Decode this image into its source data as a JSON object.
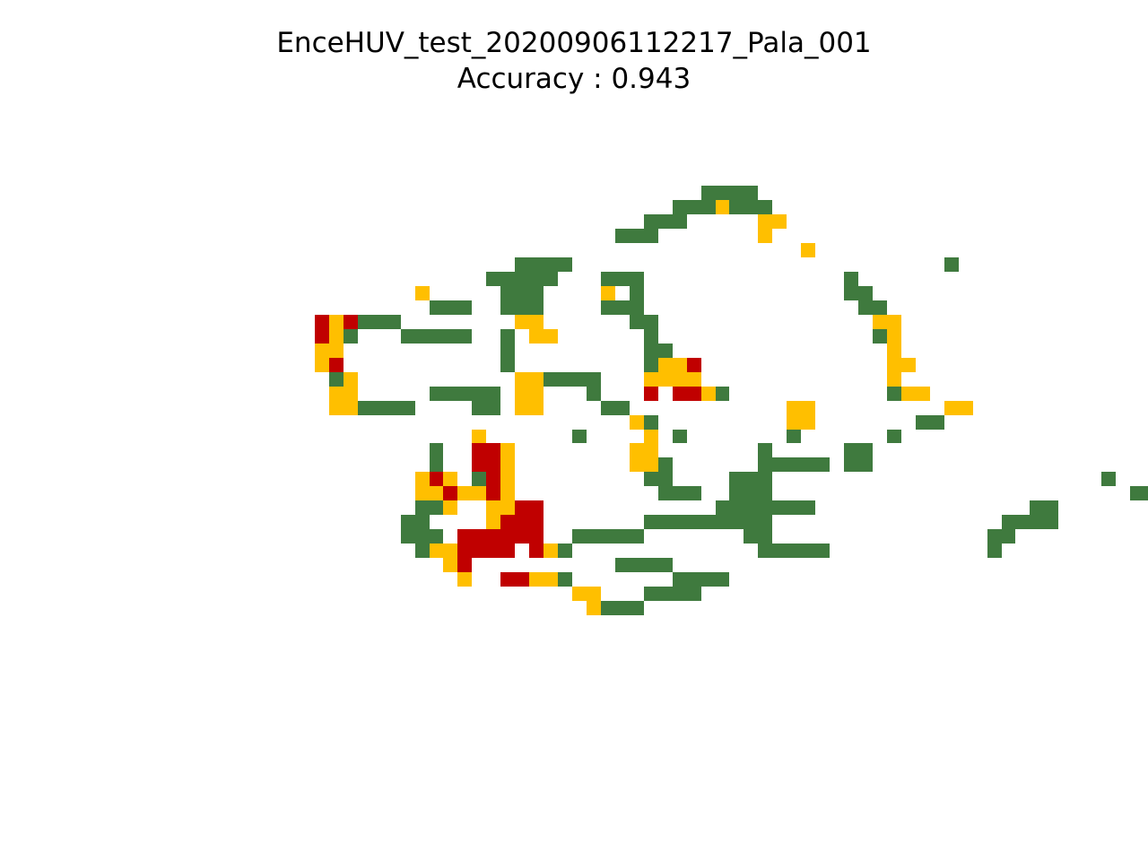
{
  "chart_data": {
    "type": "heatmap",
    "title": "EnceHUV_test_20200906112217_Pala_001",
    "subtitle": "Accuracy : 0.943",
    "axes": "off",
    "colors": {
      "G": "#3f7a3e",
      "Y": "#ffbf00",
      "R": "#c00000"
    },
    "first_row": 13,
    "first_col": 22,
    "rows": [
      "...........................GGGG.",
      ".........................GGGYGGG",
      ".......................GGG.....YY",
      ".....................GGG.......Y",
      "..................................Y",
      "..............GGGG..........................G",
      "............GGGGG...GGG..............G",
      ".......Y.....GGG....Y.G..............GG",
      "........GGG..GGG....GGG...............GG",
      "RYRGGG........YY......GG...............YY",
      "RYG...GGGGG..G.YY......G...............GY",
      "YY...........G.........GG...............Y",
      "YR...........G.........GYYR.............YY",
      ".GY...........YYGGGG...YYYY.............Y",
      ".YY.....GGGGG.YY...G...R.RRYG...........GYY",
      ".YYGGGG....GG.YY....GG...........YY.........YY",
      "......................YG.........YY.......GG",
      "...........Y......G....Y.G.......G......G",
      "........G..RRY........YY.......G.....GG",
      "........G..RRY........YYG......GGGGG.GG",
      ".......YRY.GRY.........GG....GGG.......................G",
      ".......YYRYYRY..........GGG..GGG.........................GGG",
      ".......GGY..YYRR............GGGGGGG...............GG",
      "......GG....YRRR.......GGGGGGGGG................GGGG",
      "......GGG.RRRRRR..GGGGG.......GG...............GG",
      ".......GYYRRRR.RYG.............GGGGG...........G",
      ".........YR..........GGGG",
      "..........Y..RRYYG.......GGGG",
      "..................YY...GGGG",
      "...................YGGG"
    ]
  }
}
